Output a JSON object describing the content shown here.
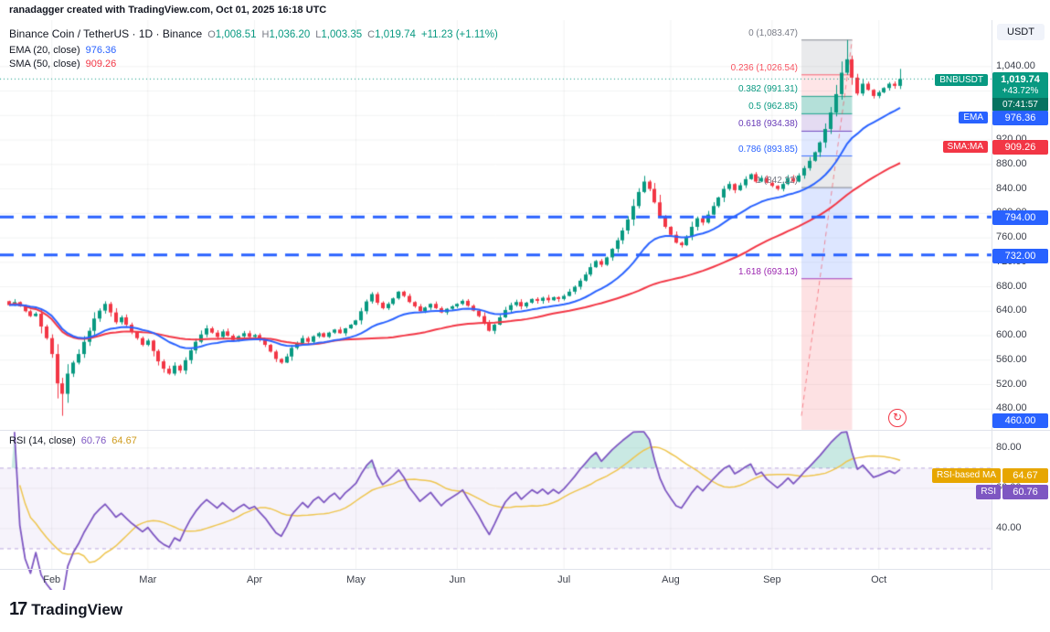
{
  "attribution": "ranadagger created with TradingView.com, Oct 01, 2025 16:18 UTC",
  "axis": {
    "currency_label": "USDT"
  },
  "icons": {
    "refresh": "↻"
  },
  "legend": {
    "symbol_line": "Binance Coin / TetherUS · 1D · Binance",
    "ohlc": {
      "o_label": "O",
      "o": "1,008.51",
      "h_label": "H",
      "h": "1,036.20",
      "l_label": "L",
      "l": "1,003.35",
      "c_label": "C",
      "c": "1,019.74",
      "change": "+11.23 (+1.11%)"
    },
    "ema_label": "EMA (20, close)",
    "ema_value": "976.36",
    "sma_label": "SMA (50, close)",
    "sma_value": "909.26"
  },
  "rsi_legend": {
    "label": "RSI (14, close)",
    "rsi_value": "60.76",
    "ma_value": "64.67"
  },
  "badges": {
    "symbol_tag": "BNBUSDT",
    "price": "1,019.74",
    "change_pct": "+43.72%",
    "countdown": "07:41:57",
    "ema_tag": "EMA",
    "ema_value": "976.36",
    "sma_tag": "SMA:MA",
    "sma_value": "909.26",
    "level_794": "794.00",
    "level_732": "732.00",
    "level_460": "460.00",
    "rsi_ma_tag": "RSI-based MA",
    "rsi_ma_value": "64.67",
    "rsi_tag": "RSI",
    "rsi_value": "60.76"
  },
  "footer": {
    "glyph": "17",
    "brand": "TradingView"
  },
  "colors": {
    "up": "#089981",
    "down": "#f23645",
    "ema": "#2962ff",
    "sma": "#f23645",
    "level": "#2962ff",
    "rsi": "#7e57c2",
    "rsi_ma": "#eec54f",
    "grid": "rgba(42,46,57,0.06)",
    "last_price": "#089981"
  },
  "chart_data": {
    "type": "candlestick",
    "title": "Binance Coin / TetherUS",
    "symbol": "BNBUSDT",
    "exchange": "Binance",
    "interval": "1D",
    "price_axis": {
      "min": 446,
      "max": 1116,
      "ticks": [
        {
          "v": 1040,
          "label": "1,040.00"
        },
        {
          "v": 1000,
          "label": "1,000.00"
        },
        {
          "v": 960,
          "label": "960.00"
        },
        {
          "v": 920,
          "label": "920.00"
        },
        {
          "v": 880,
          "label": "880.00"
        },
        {
          "v": 840,
          "label": "840.00"
        },
        {
          "v": 800,
          "label": "800.00"
        },
        {
          "v": 760,
          "label": "760.00"
        },
        {
          "v": 720,
          "label": "720.00"
        },
        {
          "v": 680,
          "label": "680.00"
        },
        {
          "v": 640,
          "label": "640.00"
        },
        {
          "v": 600,
          "label": "600.00"
        },
        {
          "v": 560,
          "label": "560.00"
        },
        {
          "v": 520,
          "label": "520.00"
        },
        {
          "v": 480,
          "label": "480.00"
        }
      ]
    },
    "x_ticks": [
      {
        "label": "Feb",
        "i": 8
      },
      {
        "label": "Mar",
        "i": 26
      },
      {
        "label": "Apr",
        "i": 46
      },
      {
        "label": "May",
        "i": 65
      },
      {
        "label": "Jun",
        "i": 84
      },
      {
        "label": "Jul",
        "i": 104
      },
      {
        "label": "Aug",
        "i": 124
      },
      {
        "label": "Sep",
        "i": 143
      },
      {
        "label": "Oct",
        "i": 163
      }
    ],
    "close": [
      650,
      655,
      648,
      640,
      632,
      636,
      615,
      596,
      570,
      522,
      505,
      538,
      556,
      570,
      590,
      608,
      628,
      641,
      652,
      638,
      622,
      630,
      618,
      606,
      596,
      585,
      592,
      575,
      558,
      546,
      538,
      551,
      543,
      560,
      576,
      590,
      602,
      612,
      605,
      598,
      607,
      600,
      593,
      599,
      604,
      598,
      601,
      593,
      585,
      574,
      562,
      556,
      566,
      580,
      588,
      596,
      590,
      599,
      604,
      598,
      605,
      610,
      604,
      612,
      618,
      625,
      640,
      656,
      668,
      654,
      645,
      652,
      661,
      672,
      665,
      655,
      648,
      640,
      646,
      652,
      645,
      638,
      644,
      648,
      652,
      657,
      649,
      641,
      632,
      620,
      608,
      618,
      630,
      642,
      650,
      655,
      648,
      654,
      660,
      657,
      662,
      658,
      663,
      660,
      665,
      672,
      680,
      690,
      700,
      712,
      722,
      716,
      728,
      742,
      756,
      772,
      790,
      812,
      835,
      852,
      840,
      818,
      795,
      778,
      765,
      752,
      748,
      762,
      778,
      792,
      785,
      798,
      812,
      826,
      840,
      848,
      838,
      846,
      856,
      864,
      852,
      858,
      850,
      845,
      840,
      848,
      858,
      852,
      862,
      874,
      886,
      900,
      916,
      938,
      965,
      995,
      1030,
      1052,
      1022,
      996,
      1012,
      1002,
      992,
      998,
      1005,
      1012,
      1008.51,
      1019.74
    ],
    "last": {
      "open": 1008.51,
      "high": 1036.2,
      "low": 1003.35,
      "close": 1019.74,
      "change": "+11.23 (+1.11%)"
    },
    "high_override": 1083.47,
    "low_override": 469,
    "indicators": {
      "ema_period": 20,
      "ema_last": 976.36,
      "sma_period": 50,
      "sma_last": 909.26
    },
    "levels": [
      {
        "value": 794,
        "label": "794.00",
        "style": "dashed"
      },
      {
        "value": 732,
        "label": "732.00",
        "style": "dashed"
      },
      {
        "value": 460,
        "label": "460.00",
        "style": "badge-only"
      }
    ],
    "last_price_line": 1019.74,
    "fib": {
      "i_start": 148.5,
      "i_end": 158,
      "trend": {
        "from_price": 469,
        "to_price": 1083.47
      },
      "levels": [
        {
          "ratio": "0",
          "price": 1083.47,
          "label": "0 (1,083.47)",
          "color": "#787b86"
        },
        {
          "ratio": "0.236",
          "price": 1026.54,
          "label": "0.236 (1,026.54)",
          "color": "#f7525f"
        },
        {
          "ratio": "0.382",
          "price": 991.31,
          "label": "0.382 (991.31)",
          "color": "#089981"
        },
        {
          "ratio": "0.5",
          "price": 962.85,
          "label": "0.5 (962.85)",
          "color": "#089981"
        },
        {
          "ratio": "0.618",
          "price": 934.38,
          "label": "0.618 (934.38)",
          "color": "#673ab7"
        },
        {
          "ratio": "0.786",
          "price": 893.85,
          "label": "0.786 (893.85)",
          "color": "#2962ff"
        },
        {
          "ratio": "1",
          "price": 842.22,
          "label": "1 (842.22)",
          "color": "#787b86"
        },
        {
          "ratio": "1.618",
          "price": 693.13,
          "label": "1.618 (693.13)",
          "color": "#9c27b0"
        }
      ],
      "bands": [
        {
          "from": 1083.47,
          "to": 1026.54,
          "color": "rgba(120,123,134,0.16)"
        },
        {
          "from": 1026.54,
          "to": 991.31,
          "color": "rgba(247,82,95,0.15)"
        },
        {
          "from": 991.31,
          "to": 962.85,
          "color": "rgba(8,153,129,0.30)"
        },
        {
          "from": 962.85,
          "to": 934.38,
          "color": "rgba(103,58,183,0.18)"
        },
        {
          "from": 934.38,
          "to": 893.85,
          "color": "rgba(41,98,255,0.14)"
        },
        {
          "from": 893.85,
          "to": 842.22,
          "color": "rgba(120,123,134,0.16)"
        },
        {
          "from": 842.22,
          "to": 693.13,
          "color": "rgba(41,98,255,0.16)"
        },
        {
          "from": 693.13,
          "to": 446,
          "color": "rgba(242,54,69,0.15)"
        }
      ]
    },
    "rsi_axis": {
      "min": 20,
      "max": 89,
      "ticks": [
        {
          "v": 80,
          "label": "80.00"
        },
        {
          "v": 60,
          "label": "60.00"
        },
        {
          "v": 40,
          "label": "40.00"
        }
      ],
      "bands": [
        70,
        30
      ]
    },
    "rsi": {
      "period": 14,
      "last": 60.76,
      "ma_period": 14,
      "ma_last": 64.67
    }
  }
}
